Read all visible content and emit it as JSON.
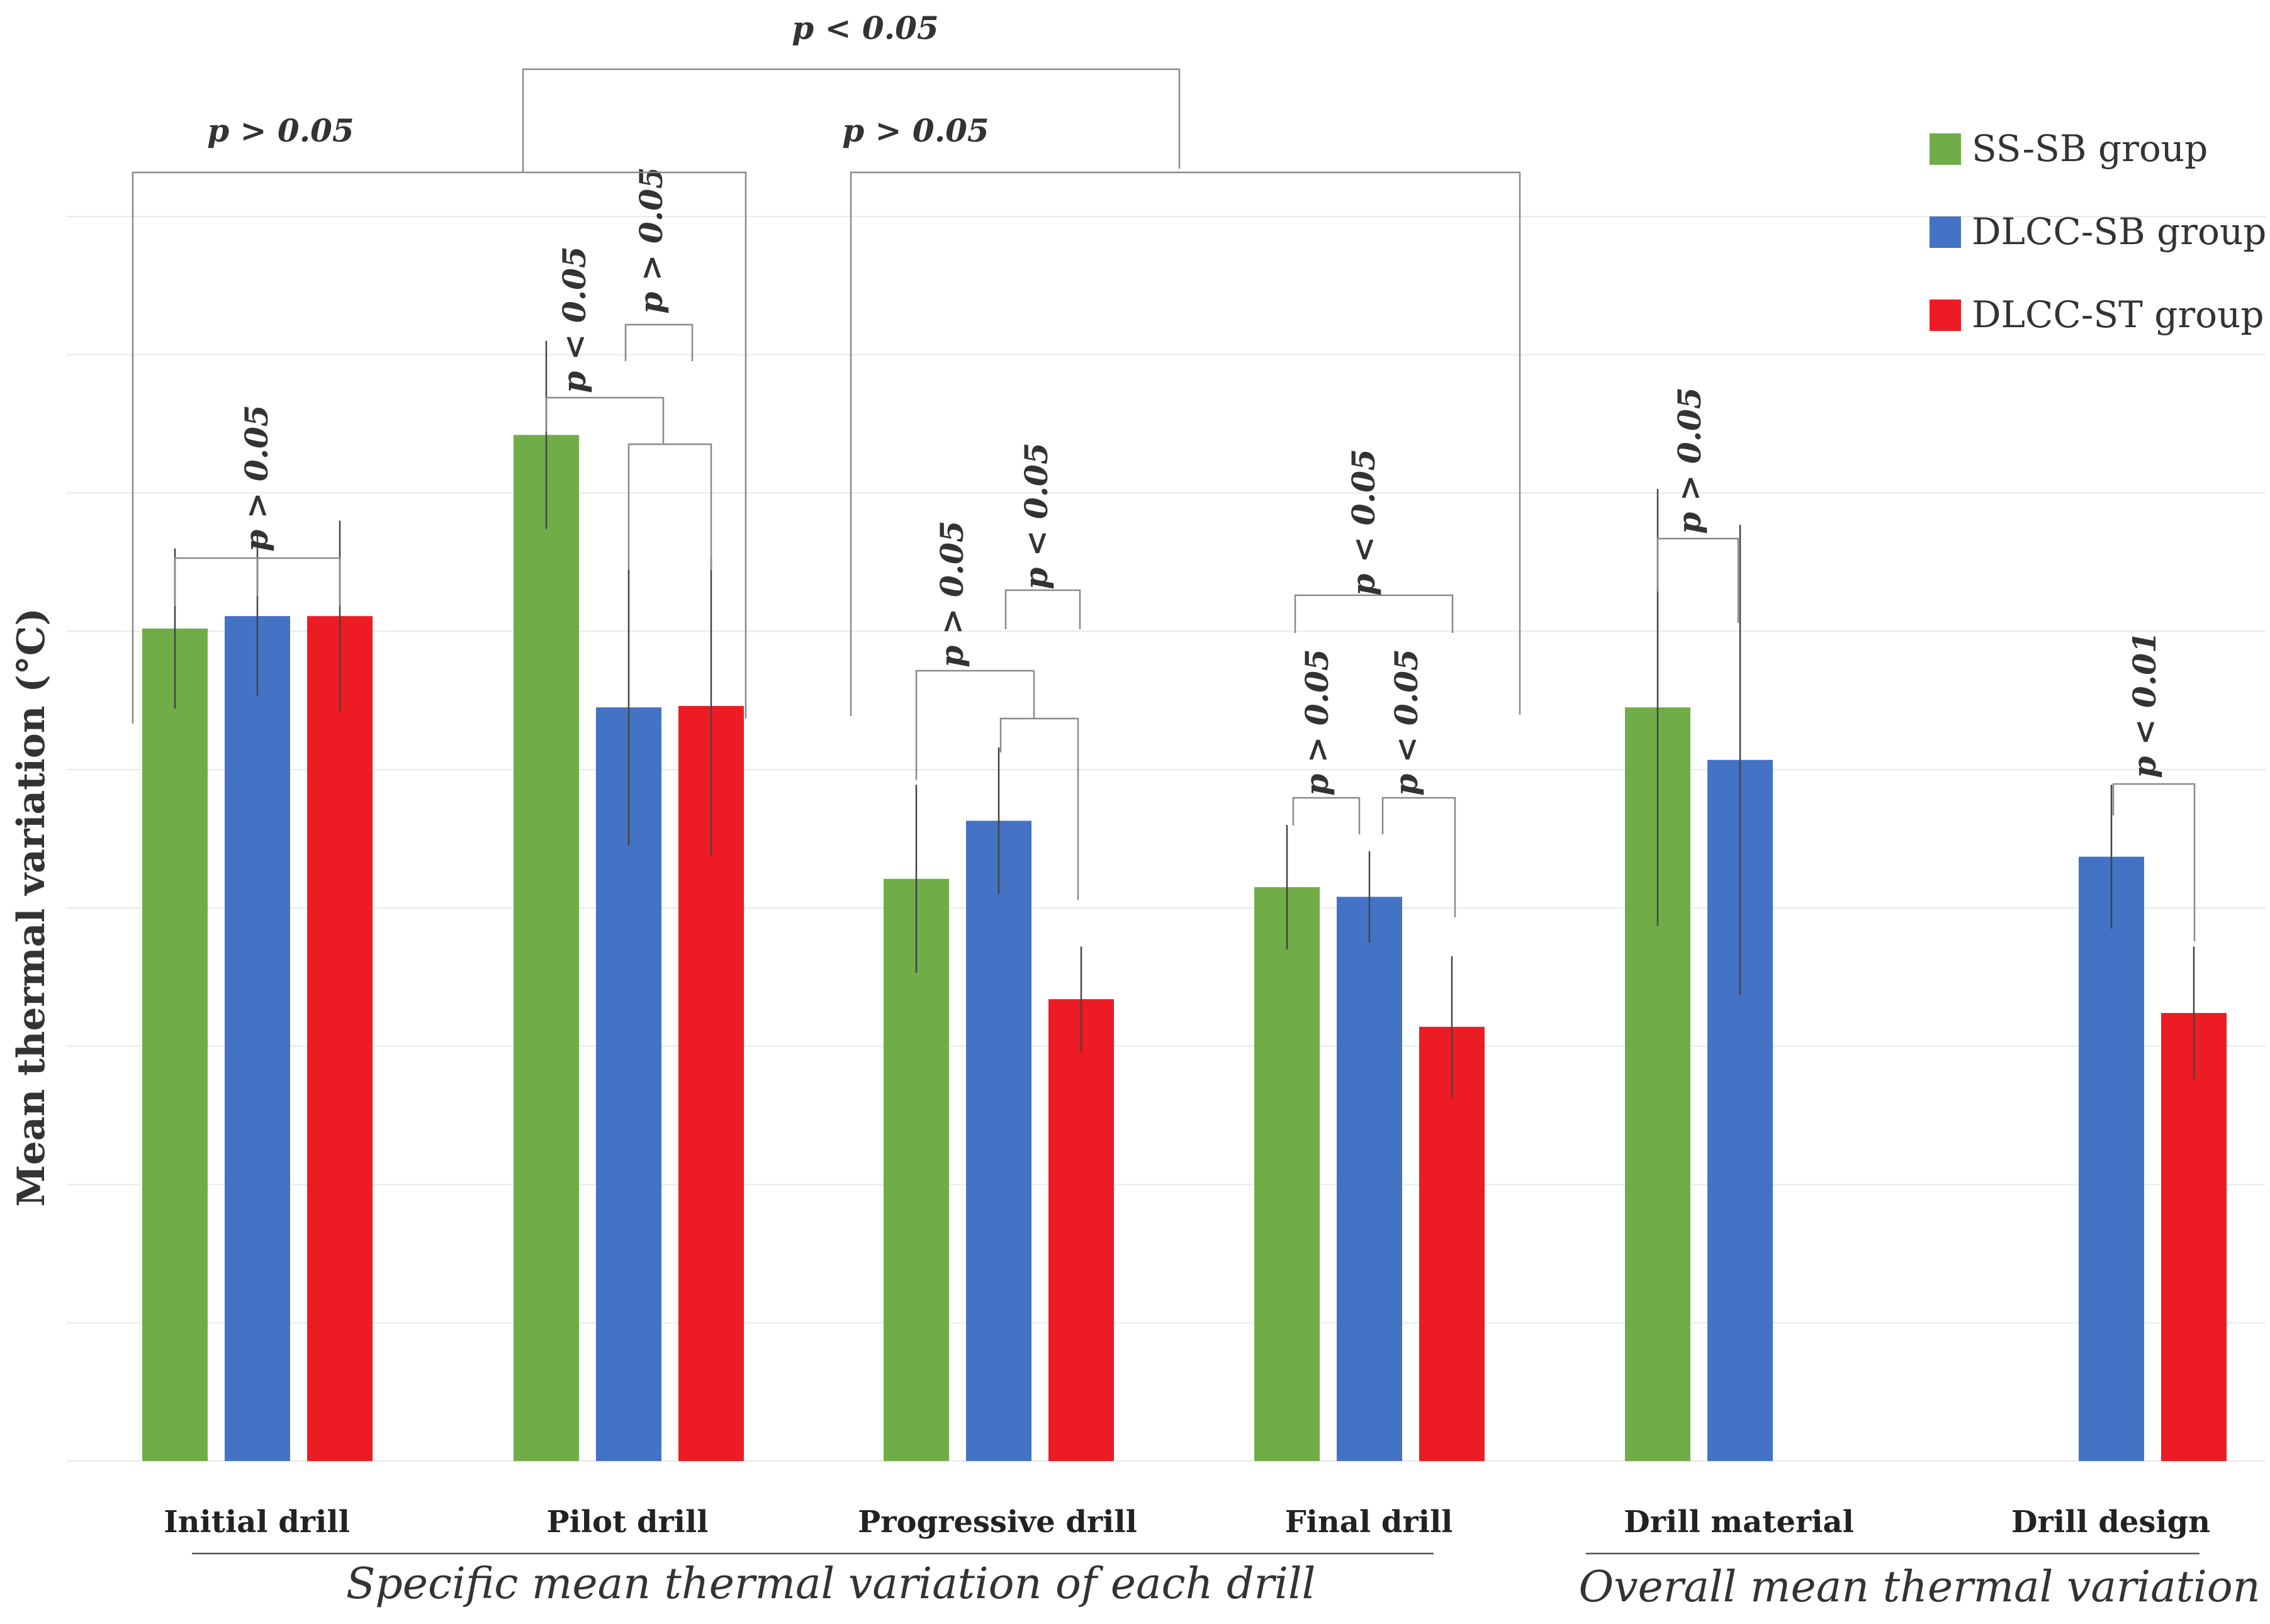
{
  "chart_data": {
    "type": "bar",
    "ylabel": "Mean thermal variation (°C)",
    "ylim": [
      0,
      9
    ],
    "grid": true,
    "legend_position": "top-right",
    "categories": [
      "Initial drill",
      "Pilot drill",
      "Progressive drill",
      "Final drill",
      "Drill material",
      "Drill design"
    ],
    "series": [
      {
        "name": "SS-SB group",
        "color": "#70ad47",
        "values": [
          6.02,
          7.42,
          4.21,
          4.15,
          5.45,
          null
        ],
        "err": [
          0.58,
          0.68,
          0.68,
          0.45,
          1.58,
          null
        ]
      },
      {
        "name": "DLCC-SB group",
        "color": "#4472c4",
        "values": [
          6.11,
          5.45,
          4.63,
          4.08,
          5.07,
          4.37
        ],
        "err": [
          0.58,
          1.0,
          0.53,
          0.33,
          1.7,
          0.52
        ]
      },
      {
        "name": "DLCC-ST group",
        "color": "#ed1c24",
        "values": [
          6.11,
          5.46,
          3.34,
          3.14,
          null,
          3.24
        ],
        "err": [
          0.69,
          1.08,
          0.38,
          0.51,
          null,
          0.48
        ]
      }
    ],
    "group_labels": [
      {
        "text": "Specific mean thermal variation of each drill",
        "categories": [
          "Initial drill",
          "Pilot drill",
          "Progressive drill",
          "Final drill"
        ]
      },
      {
        "text": "Overall mean thermal variation",
        "categories": [
          "Drill material",
          "Drill design"
        ]
      }
    ],
    "annotations": [
      {
        "text": "p > 0.05",
        "between": "Initial drill: all groups"
      },
      {
        "text": "p < 0.05",
        "between": "Pilot drill: SS-SB vs DLCC groups"
      },
      {
        "text": "p > 0.05",
        "between": "Pilot drill: DLCC-SB vs DLCC-ST"
      },
      {
        "text": "p > 0.05",
        "between": "Progressive drill: SS-SB vs DLCC-SB"
      },
      {
        "text": "p < 0.05",
        "between": "Progressive drill: vs DLCC-ST"
      },
      {
        "text": "p > 0.05",
        "between": "Final drill: SS-SB vs DLCC-SB"
      },
      {
        "text": "p < 0.05",
        "between": "Final drill: DLCC-SB vs DLCC-ST"
      },
      {
        "text": "p < 0.05",
        "between": "Final drill: SS-SB/DLCC-SB vs DLCC-ST"
      },
      {
        "text": "p > 0.05",
        "between": "Initial drill vs Pilot drill"
      },
      {
        "text": "p > 0.05",
        "between": "Progressive drill vs Final drill"
      },
      {
        "text": "p < 0.05",
        "between": "Initial/Pilot vs Progressive/Final"
      },
      {
        "text": "p > 0.05",
        "between": "Drill material: SS-SB vs DLCC-SB"
      },
      {
        "text": "p < 0.01",
        "between": "Drill design: DLCC-SB vs DLCC-ST"
      }
    ]
  }
}
